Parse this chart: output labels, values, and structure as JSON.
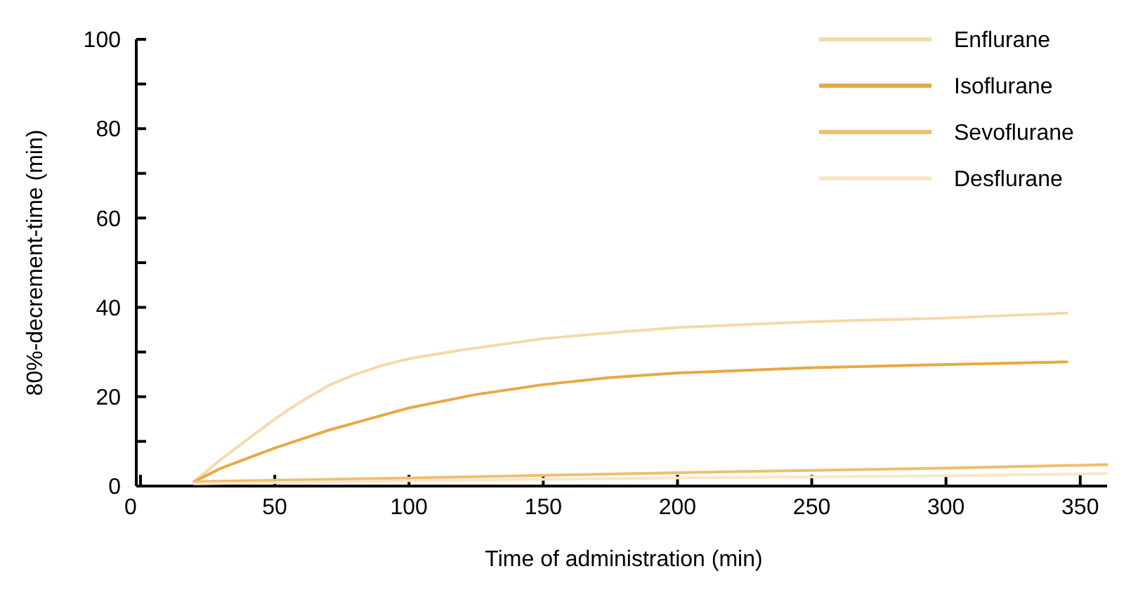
{
  "chart_data": {
    "type": "line",
    "xlabel": "Time of administration (min)",
    "ylabel": "80%-decrement-time (min)",
    "xlim": [
      0,
      360
    ],
    "xticks": [
      0,
      50,
      100,
      150,
      200,
      250,
      300,
      350
    ],
    "ylim": [
      0,
      100
    ],
    "yticks": [
      0,
      {
        "value": 10,
        "label": null
      },
      20,
      {
        "value": 30,
        "label": null
      },
      40,
      {
        "value": 50,
        "label": null
      },
      60,
      {
        "value": 70,
        "label": null
      },
      80,
      {
        "value": 90,
        "label": null
      },
      100
    ],
    "grid": false,
    "legend": "top right",
    "line_style": "solid",
    "series": [
      {
        "name": "Enflurane",
        "color": "#f5d9a8",
        "x": [
          20,
          30,
          40,
          50,
          60,
          70,
          80,
          90,
          100,
          120,
          150,
          175,
          200,
          250,
          300,
          345
        ],
        "values": [
          1,
          6,
          10.5,
          15,
          19,
          22.5,
          25,
          27,
          28.5,
          30.5,
          33,
          34.3,
          35.5,
          36.8,
          37.6,
          38.7
        ]
      },
      {
        "name": "Isoflurane",
        "color": "#e8a844",
        "x": [
          20,
          30,
          50,
          70,
          100,
          125,
          150,
          175,
          200,
          250,
          300,
          345
        ],
        "values": [
          1,
          4,
          8.5,
          12.5,
          17.5,
          20.5,
          22.7,
          24.3,
          25.3,
          26.5,
          27.2,
          27.8
        ]
      },
      {
        "name": "Sevoflurane",
        "color": "#efbe70",
        "x": [
          20,
          100,
          200,
          300,
          360
        ],
        "values": [
          1,
          1.8,
          3,
          4,
          4.8
        ]
      },
      {
        "name": "Desflurane",
        "color": "#f8e6c8",
        "x": [
          20,
          100,
          200,
          300,
          360
        ],
        "values": [
          0.5,
          1.2,
          1.8,
          2.3,
          2.8
        ]
      }
    ]
  }
}
